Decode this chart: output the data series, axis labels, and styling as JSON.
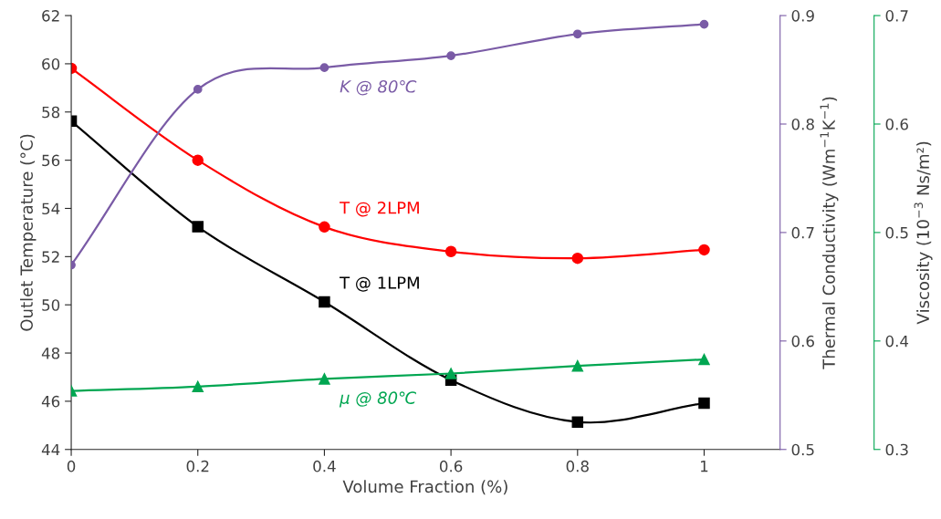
{
  "chart_data": {
    "type": "line",
    "xlabel": "Volume Fraction (%)",
    "ylabel": "Outlet Temperature (°C)",
    "y2label": "Thermal Conductivity (Wm$^{−1}$K$^{−1}$)",
    "y3label": "Viscosity (10$^{−3}$ Ns/m²)",
    "x": [
      0,
      0.2,
      0.4,
      0.6,
      0.8,
      1
    ],
    "xlim": [
      0,
      1.12
    ],
    "xticks": [
      0,
      0.2,
      0.4,
      0.6,
      0.8,
      1
    ],
    "ylim": [
      44,
      62
    ],
    "yticks": [
      44,
      46,
      48,
      50,
      52,
      54,
      56,
      58,
      60,
      62
    ],
    "y2lim": [
      0.5,
      0.9
    ],
    "y2ticks": [
      0.5,
      0.6,
      0.7,
      0.8,
      0.9
    ],
    "y3lim": [
      0.3,
      0.7
    ],
    "y3ticks": [
      0.3,
      0.4,
      0.5,
      0.6,
      0.7
    ],
    "grid": false,
    "legend": false,
    "series": [
      {
        "name": "K @ 80℃",
        "color": "#7a5ba6",
        "axis": "y2",
        "marker": "circle",
        "values": [
          0.67,
          0.832,
          0.852,
          0.863,
          0.883,
          0.892
        ]
      },
      {
        "name": "T @ 2LPM",
        "color": "#ff0000",
        "marker": "circle",
        "values": [
          59.81,
          56.0,
          53.23,
          52.21,
          51.93,
          52.28
        ]
      },
      {
        "name": "T @ 1LPM",
        "color": "#000000",
        "marker": "square",
        "values": [
          57.62,
          53.24,
          50.12,
          46.88,
          45.14,
          45.92
        ]
      },
      {
        "name": "μ @ 80℃",
        "color": "#00a651",
        "axis": "y3",
        "marker": "triangle",
        "values": [
          0.354,
          0.358,
          0.365,
          0.37,
          0.377,
          0.383
        ]
      }
    ]
  }
}
